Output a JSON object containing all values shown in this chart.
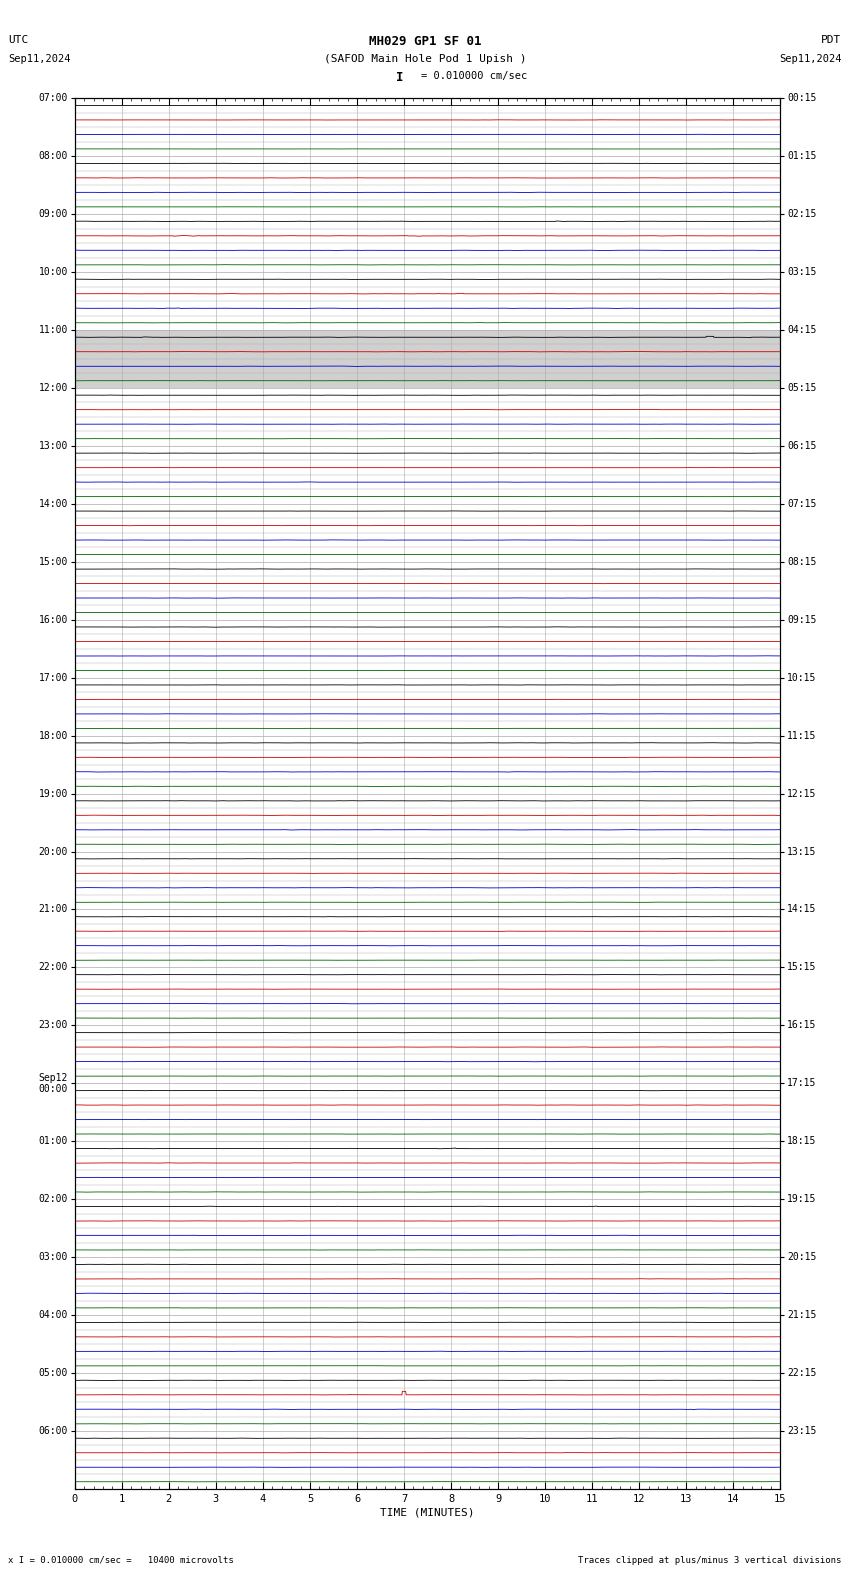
{
  "title_line1": "MH029 GP1 SF 01",
  "title_line2": "(SAFOD Main Hole Pod 1 Upish )",
  "scale_label": "I = 0.010000 cm/sec",
  "utc_label": "UTC",
  "pdt_label": "PDT",
  "utc_date": "Sep11,2024",
  "pdt_date": "Sep11,2024",
  "xlabel": "TIME (MINUTES)",
  "bottom_left": "x I = 0.010000 cm/sec =   10400 microvolts",
  "bottom_right": "Traces clipped at plus/minus 3 vertical divisions",
  "bg_color": "#ffffff",
  "grid_color": "#aaaaaa",
  "trace_colors": [
    "#000000",
    "#cc0000",
    "#0000cc",
    "#006600"
  ],
  "left_times": [
    "07:00",
    "08:00",
    "09:00",
    "10:00",
    "11:00",
    "12:00",
    "13:00",
    "14:00",
    "15:00",
    "16:00",
    "17:00",
    "18:00",
    "19:00",
    "20:00",
    "21:00",
    "22:00",
    "23:00",
    "Sep12\n00:00",
    "01:00",
    "02:00",
    "03:00",
    "04:00",
    "05:00",
    "06:00"
  ],
  "right_times": [
    "00:15",
    "01:15",
    "02:15",
    "03:15",
    "04:15",
    "05:15",
    "06:15",
    "07:15",
    "08:15",
    "09:15",
    "10:15",
    "11:15",
    "12:15",
    "13:15",
    "14:15",
    "15:15",
    "16:15",
    "17:15",
    "18:15",
    "19:15",
    "20:15",
    "21:15",
    "22:15",
    "23:15"
  ],
  "n_rows": 24,
  "n_traces_per_row": 4,
  "fig_width": 8.5,
  "fig_height": 15.84,
  "dpi": 100,
  "gray_row": 4,
  "gray_color": "#d0d0d0",
  "trace_noise": {
    "default": [
      0.004,
      0.003,
      0.003,
      0.001
    ],
    "0": [
      0.004,
      0.003,
      0.003,
      0.001
    ],
    "1": [
      0.008,
      0.01,
      0.006,
      0.002
    ],
    "2": [
      0.018,
      0.025,
      0.018,
      0.005
    ],
    "3": [
      0.022,
      0.02,
      0.015,
      0.006
    ],
    "4": [
      0.025,
      0.012,
      0.008,
      0.003
    ],
    "5": [
      0.005,
      0.004,
      0.004,
      0.002
    ],
    "6": [
      0.003,
      0.003,
      0.003,
      0.001
    ],
    "7": [
      0.003,
      0.004,
      0.003,
      0.001
    ],
    "8": [
      0.004,
      0.003,
      0.004,
      0.001
    ],
    "9": [
      0.004,
      0.003,
      0.003,
      0.001
    ],
    "10": [
      0.004,
      0.003,
      0.003,
      0.001
    ],
    "11": [
      0.012,
      0.008,
      0.007,
      0.004
    ],
    "12": [
      0.014,
      0.01,
      0.01,
      0.004
    ],
    "13": [
      0.012,
      0.008,
      0.009,
      0.003
    ],
    "14": [
      0.007,
      0.006,
      0.006,
      0.002
    ],
    "15": [
      0.005,
      0.004,
      0.004,
      0.002
    ],
    "16": [
      0.005,
      0.004,
      0.004,
      0.002
    ],
    "17": [
      0.01,
      0.008,
      0.007,
      0.003
    ],
    "18": [
      0.014,
      0.01,
      0.01,
      0.004
    ],
    "19": [
      0.015,
      0.01,
      0.012,
      0.004
    ],
    "20": [
      0.01,
      0.008,
      0.008,
      0.003
    ],
    "21": [
      0.007,
      0.005,
      0.005,
      0.002
    ],
    "22": [
      0.007,
      0.006,
      0.022,
      0.004
    ],
    "23": [
      0.008,
      0.007,
      0.006,
      0.003
    ]
  }
}
